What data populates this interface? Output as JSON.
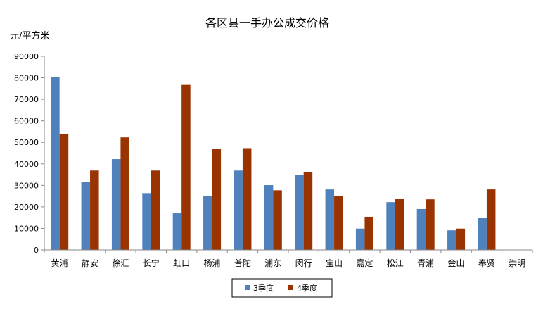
{
  "chart_data": {
    "type": "bar",
    "title": "各区县一手办公成交价格",
    "ylabel": "元/平方米",
    "xlabel": "",
    "ylim": [
      0,
      90000
    ],
    "yticks": [
      0,
      10000,
      20000,
      30000,
      40000,
      50000,
      60000,
      70000,
      80000,
      90000
    ],
    "grid": false,
    "legend_position": "bottom",
    "categories": [
      "黄浦",
      "静安",
      "徐汇",
      "长宁",
      "虹口",
      "杨浦",
      "普陀",
      "浦东",
      "闵行",
      "宝山",
      "嘉定",
      "松江",
      "青浦",
      "金山",
      "奉贤",
      "崇明"
    ],
    "series": [
      {
        "name": "3季度",
        "color": "#4F81BD",
        "values": [
          80300,
          31700,
          42200,
          26400,
          17000,
          25200,
          36900,
          30100,
          34700,
          28100,
          9900,
          22200,
          19000,
          9100,
          14800,
          null
        ]
      },
      {
        "name": "4季度",
        "color": "#993300",
        "values": [
          54000,
          36900,
          52300,
          36900,
          76700,
          47000,
          47300,
          27700,
          36300,
          25200,
          15400,
          23800,
          23500,
          9900,
          28100,
          null
        ]
      }
    ]
  }
}
